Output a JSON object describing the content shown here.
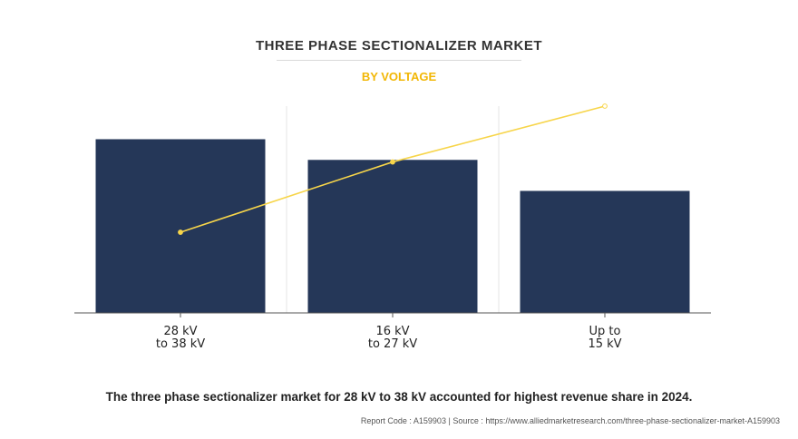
{
  "header": {
    "title": "THREE PHASE SECTIONALIZER MARKET",
    "subtitle": "BY VOLTAGE"
  },
  "caption": "The three phase sectionalizer market for 28 kV to 38 kV accounted for highest revenue share in 2024.",
  "footer": {
    "report_code": "Report Code : A159903",
    "separator": "|",
    "source": "Source : https://www.alliedmarketresearch.com/three-phase-sectionalizer-market-A159903"
  },
  "colors": {
    "bar": "#253758",
    "line": "#f7d54a",
    "title": "#333333",
    "subtitle": "#f2b705"
  },
  "chart_data": {
    "type": "bar",
    "categories": [
      [
        "28 kV",
        "to 38 kV"
      ],
      [
        "16 kV",
        "to 27 kV"
      ],
      [
        "Up to",
        "15 kV"
      ]
    ],
    "values": [
      84,
      74,
      59
    ],
    "line_overlay": {
      "type": "line",
      "values": [
        39,
        73,
        100
      ]
    },
    "ylim": [
      0,
      100
    ],
    "grid": "vertical",
    "legend": "none",
    "xlabel": "",
    "ylabel": ""
  }
}
